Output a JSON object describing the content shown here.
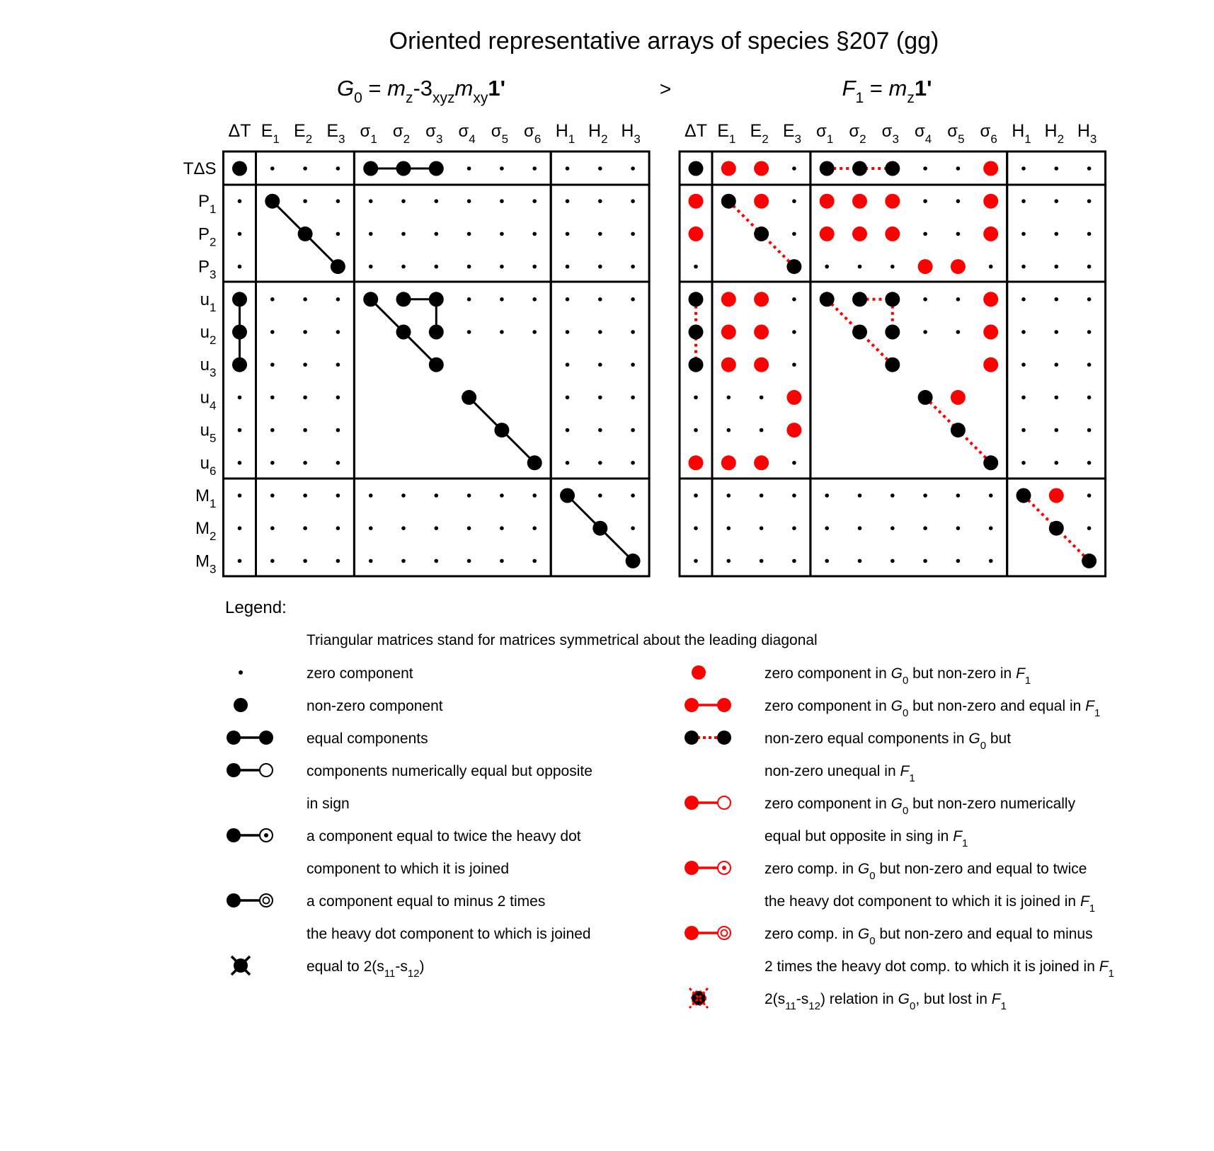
{
  "title": "Oriented representative arrays of species §207 (gg)",
  "comparator": ">",
  "left_group": {
    "main": "G",
    "sub": "0",
    "eq": " = ",
    "m1": "m",
    "m1sub": "z",
    "mid": "-3",
    "midsub": "xyz",
    "m2": "m",
    "m2sub": "xy",
    "bold": "1'"
  },
  "right_group": {
    "main": "F",
    "sub": "1",
    "eq": " = ",
    "m1": "m",
    "m1sub": "z",
    "bold": "1'"
  },
  "columns": [
    {
      "base": "ΔT",
      "sub": "",
      "greek": false
    },
    {
      "base": "E",
      "sub": "1",
      "greek": false
    },
    {
      "base": "E",
      "sub": "2",
      "greek": false
    },
    {
      "base": "E",
      "sub": "3",
      "greek": false
    },
    {
      "base": "σ",
      "sub": "1",
      "greek": true
    },
    {
      "base": "σ",
      "sub": "2",
      "greek": true
    },
    {
      "base": "σ",
      "sub": "3",
      "greek": true
    },
    {
      "base": "σ",
      "sub": "4",
      "greek": true
    },
    {
      "base": "σ",
      "sub": "5",
      "greek": true
    },
    {
      "base": "σ",
      "sub": "6",
      "greek": true
    },
    {
      "base": "H",
      "sub": "1",
      "greek": false
    },
    {
      "base": "H",
      "sub": "2",
      "greek": false
    },
    {
      "base": "H",
      "sub": "3",
      "greek": false
    }
  ],
  "rows": [
    {
      "base": "TΔS",
      "sub": ""
    },
    {
      "base": "P",
      "sub": "1"
    },
    {
      "base": "P",
      "sub": "2"
    },
    {
      "base": "P",
      "sub": "3"
    },
    {
      "base": "u",
      "sub": "1"
    },
    {
      "base": "u",
      "sub": "2"
    },
    {
      "base": "u",
      "sub": "3"
    },
    {
      "base": "u",
      "sub": "4"
    },
    {
      "base": "u",
      "sub": "5"
    },
    {
      "base": "u",
      "sub": "6"
    },
    {
      "base": "M",
      "sub": "1"
    },
    {
      "base": "M",
      "sub": "2"
    },
    {
      "base": "M",
      "sub": "3"
    }
  ],
  "col_blocks": [
    [
      0,
      0
    ],
    [
      1,
      3
    ],
    [
      4,
      9
    ],
    [
      10,
      12
    ]
  ],
  "row_blocks": [
    [
      0,
      0
    ],
    [
      1,
      3
    ],
    [
      4,
      9
    ],
    [
      10,
      12
    ]
  ],
  "left_matrix": {
    "cells": [
      {
        "row": 0,
        "col": 0,
        "state": "big"
      },
      {
        "row": 0,
        "col": 4,
        "state": "big"
      },
      {
        "row": 0,
        "col": 5,
        "state": "big"
      },
      {
        "row": 0,
        "col": 6,
        "state": "big"
      },
      {
        "row": 1,
        "col": 1,
        "state": "big"
      },
      {
        "row": 2,
        "col": 2,
        "state": "big"
      },
      {
        "row": 3,
        "col": 3,
        "state": "big"
      },
      {
        "row": 4,
        "col": 0,
        "state": "big"
      },
      {
        "row": 5,
        "col": 0,
        "state": "big"
      },
      {
        "row": 6,
        "col": 0,
        "state": "big"
      },
      {
        "row": 4,
        "col": 4,
        "state": "big"
      },
      {
        "row": 4,
        "col": 5,
        "state": "big"
      },
      {
        "row": 4,
        "col": 6,
        "state": "big"
      },
      {
        "row": 5,
        "col": 5,
        "state": "big"
      },
      {
        "row": 5,
        "col": 6,
        "state": "big"
      },
      {
        "row": 6,
        "col": 6,
        "state": "big"
      },
      {
        "row": 7,
        "col": 7,
        "state": "big"
      },
      {
        "row": 8,
        "col": 8,
        "state": "big"
      },
      {
        "row": 9,
        "col": 9,
        "state": "big"
      },
      {
        "row": 10,
        "col": 10,
        "state": "big"
      },
      {
        "row": 11,
        "col": 11,
        "state": "big"
      },
      {
        "row": 12,
        "col": 12,
        "state": "big"
      }
    ],
    "links": [
      {
        "from": [
          0,
          4
        ],
        "to": [
          0,
          6
        ],
        "style": "solid"
      },
      {
        "from": [
          1,
          1
        ],
        "to": [
          3,
          3
        ],
        "style": "solid"
      },
      {
        "from": [
          4,
          0
        ],
        "to": [
          6,
          0
        ],
        "style": "solid"
      },
      {
        "from": [
          4,
          4
        ],
        "to": [
          6,
          6
        ],
        "style": "solid"
      },
      {
        "from": [
          4,
          5
        ],
        "to": [
          4,
          6
        ],
        "style": "solid"
      },
      {
        "from": [
          4,
          6
        ],
        "to": [
          5,
          6
        ],
        "style": "solid"
      },
      {
        "from": [
          7,
          7
        ],
        "to": [
          9,
          9
        ],
        "style": "solid"
      },
      {
        "from": [
          10,
          10
        ],
        "to": [
          12,
          12
        ],
        "style": "solid"
      }
    ]
  },
  "right_matrix": {
    "cells": [
      {
        "row": 0,
        "col": 0,
        "state": "big"
      },
      {
        "row": 0,
        "col": 1,
        "state": "red"
      },
      {
        "row": 0,
        "col": 2,
        "state": "red"
      },
      {
        "row": 0,
        "col": 4,
        "state": "big"
      },
      {
        "row": 0,
        "col": 5,
        "state": "big"
      },
      {
        "row": 0,
        "col": 6,
        "state": "big"
      },
      {
        "row": 0,
        "col": 9,
        "state": "red"
      },
      {
        "row": 1,
        "col": 0,
        "state": "red"
      },
      {
        "row": 1,
        "col": 1,
        "state": "big"
      },
      {
        "row": 1,
        "col": 2,
        "state": "red"
      },
      {
        "row": 1,
        "col": 4,
        "state": "red"
      },
      {
        "row": 1,
        "col": 5,
        "state": "red"
      },
      {
        "row": 1,
        "col": 6,
        "state": "red"
      },
      {
        "row": 1,
        "col": 9,
        "state": "red"
      },
      {
        "row": 2,
        "col": 0,
        "state": "red"
      },
      {
        "row": 2,
        "col": 2,
        "state": "big"
      },
      {
        "row": 2,
        "col": 4,
        "state": "red"
      },
      {
        "row": 2,
        "col": 5,
        "state": "red"
      },
      {
        "row": 2,
        "col": 6,
        "state": "red"
      },
      {
        "row": 2,
        "col": 9,
        "state": "red"
      },
      {
        "row": 3,
        "col": 3,
        "state": "big"
      },
      {
        "row": 3,
        "col": 7,
        "state": "red"
      },
      {
        "row": 3,
        "col": 8,
        "state": "red"
      },
      {
        "row": 4,
        "col": 0,
        "state": "big"
      },
      {
        "row": 4,
        "col": 1,
        "state": "red"
      },
      {
        "row": 4,
        "col": 2,
        "state": "red"
      },
      {
        "row": 4,
        "col": 4,
        "state": "big"
      },
      {
        "row": 4,
        "col": 5,
        "state": "big"
      },
      {
        "row": 4,
        "col": 6,
        "state": "big"
      },
      {
        "row": 4,
        "col": 9,
        "state": "red"
      },
      {
        "row": 5,
        "col": 0,
        "state": "big"
      },
      {
        "row": 5,
        "col": 1,
        "state": "red"
      },
      {
        "row": 5,
        "col": 2,
        "state": "red"
      },
      {
        "row": 5,
        "col": 5,
        "state": "big"
      },
      {
        "row": 5,
        "col": 6,
        "state": "big"
      },
      {
        "row": 5,
        "col": 9,
        "state": "red"
      },
      {
        "row": 6,
        "col": 0,
        "state": "big"
      },
      {
        "row": 6,
        "col": 1,
        "state": "red"
      },
      {
        "row": 6,
        "col": 2,
        "state": "red"
      },
      {
        "row": 6,
        "col": 6,
        "state": "big"
      },
      {
        "row": 6,
        "col": 9,
        "state": "red"
      },
      {
        "row": 7,
        "col": 3,
        "state": "red"
      },
      {
        "row": 7,
        "col": 7,
        "state": "big"
      },
      {
        "row": 7,
        "col": 8,
        "state": "red"
      },
      {
        "row": 8,
        "col": 3,
        "state": "red"
      },
      {
        "row": 8,
        "col": 8,
        "state": "big"
      },
      {
        "row": 9,
        "col": 0,
        "state": "red"
      },
      {
        "row": 9,
        "col": 1,
        "state": "red"
      },
      {
        "row": 9,
        "col": 2,
        "state": "red"
      },
      {
        "row": 9,
        "col": 9,
        "state": "big"
      },
      {
        "row": 10,
        "col": 10,
        "state": "big"
      },
      {
        "row": 10,
        "col": 11,
        "state": "red"
      },
      {
        "row": 11,
        "col": 11,
        "state": "big"
      },
      {
        "row": 12,
        "col": 12,
        "state": "big"
      }
    ],
    "links": [
      {
        "from": [
          0,
          4
        ],
        "to": [
          0,
          6
        ],
        "style": "dotted"
      },
      {
        "from": [
          1,
          1
        ],
        "to": [
          3,
          3
        ],
        "style": "dotted"
      },
      {
        "from": [
          4,
          0
        ],
        "to": [
          6,
          0
        ],
        "style": "dotted"
      },
      {
        "from": [
          4,
          4
        ],
        "to": [
          6,
          6
        ],
        "style": "dotted"
      },
      {
        "from": [
          4,
          5
        ],
        "to": [
          4,
          6
        ],
        "style": "dotted"
      },
      {
        "from": [
          4,
          6
        ],
        "to": [
          5,
          6
        ],
        "style": "dotted"
      },
      {
        "from": [
          7,
          7
        ],
        "to": [
          9,
          9
        ],
        "style": "dotted"
      },
      {
        "from": [
          10,
          10
        ],
        "to": [
          12,
          12
        ],
        "style": "dotted"
      }
    ]
  },
  "legend": {
    "title": "Legend:",
    "note": "Triangular matrices stand for matrices symmetrical about the leading diagonal",
    "left": [
      {
        "symbol": "small-dot",
        "lines": [
          [
            {
              "t": "zero component"
            }
          ]
        ]
      },
      {
        "symbol": "big-dot",
        "lines": [
          [
            {
              "t": "non-zero component"
            }
          ]
        ]
      },
      {
        "symbol": "equal-pair",
        "lines": [
          [
            {
              "t": "equal components"
            }
          ]
        ]
      },
      {
        "symbol": "opposite-pair",
        "lines": [
          [
            {
              "t": "components numerically equal but opposite"
            }
          ],
          [
            {
              "t": "in sign"
            }
          ]
        ]
      },
      {
        "symbol": "twice-pair",
        "lines": [
          [
            {
              "t": "a component equal to twice the heavy dot"
            }
          ],
          [
            {
              "t": "component to which it is joined"
            }
          ]
        ]
      },
      {
        "symbol": "minus-two-pair",
        "lines": [
          [
            {
              "t": "a component equal to minus 2 times"
            }
          ],
          [
            {
              "t": "the heavy dot component to which is joined"
            }
          ]
        ]
      },
      {
        "symbol": "cross-dot",
        "lines": [
          [
            {
              "t": "equal to 2(s"
            },
            {
              "t": "11",
              "sub": true
            },
            {
              "t": "-s"
            },
            {
              "t": "12",
              "sub": true
            },
            {
              "t": ")"
            }
          ]
        ]
      }
    ],
    "right": [
      {
        "symbol": "red-dot",
        "lines": [
          [
            {
              "t": "zero component in "
            },
            {
              "t": "G",
              "i": true
            },
            {
              "t": "0",
              "sub": true
            },
            {
              "t": " but non-zero in "
            },
            {
              "t": "F",
              "i": true
            },
            {
              "t": "1",
              "sub": true
            }
          ]
        ]
      },
      {
        "symbol": "red-pair",
        "lines": [
          [
            {
              "t": "zero component in "
            },
            {
              "t": "G",
              "i": true
            },
            {
              "t": "0",
              "sub": true
            },
            {
              "t": " but non-zero and equal in "
            },
            {
              "t": "F",
              "i": true
            },
            {
              "t": "1",
              "sub": true
            }
          ]
        ]
      },
      {
        "symbol": "dotted-pair",
        "lines": [
          [
            {
              "t": "non-zero equal components in "
            },
            {
              "t": "G",
              "i": true
            },
            {
              "t": "0",
              "sub": true
            },
            {
              "t": " but"
            }
          ],
          [
            {
              "t": "non-zero unequal in "
            },
            {
              "t": "F",
              "i": true
            },
            {
              "t": "1",
              "sub": true
            }
          ]
        ]
      },
      {
        "symbol": "red-opposite-pair",
        "lines": [
          [
            {
              "t": "zero component in "
            },
            {
              "t": "G",
              "i": true
            },
            {
              "t": "0",
              "sub": true
            },
            {
              "t": " but non-zero numerically"
            }
          ],
          [
            {
              "t": "equal but opposite in sing in "
            },
            {
              "t": "F",
              "i": true
            },
            {
              "t": "1",
              "sub": true
            }
          ]
        ]
      },
      {
        "symbol": "red-twice-pair",
        "lines": [
          [
            {
              "t": "zero comp. in "
            },
            {
              "t": "G",
              "i": true
            },
            {
              "t": "0",
              "sub": true
            },
            {
              "t": " but non-zero and equal to twice"
            }
          ],
          [
            {
              "t": "the heavy dot component to which it is joined in "
            },
            {
              "t": "F",
              "i": true
            },
            {
              "t": "1",
              "sub": true
            }
          ]
        ]
      },
      {
        "symbol": "red-minus-two-pair",
        "lines": [
          [
            {
              "t": "zero comp. in "
            },
            {
              "t": "G",
              "i": true
            },
            {
              "t": "0",
              "sub": true
            },
            {
              "t": " but non-zero and equal to minus"
            }
          ],
          [
            {
              "t": "2 times the heavy dot comp. to which it is joined in "
            },
            {
              "t": "F",
              "i": true
            },
            {
              "t": "1",
              "sub": true
            }
          ]
        ]
      },
      {
        "symbol": "red-cross-dot",
        "lines": [
          [
            {
              "t": "2(s"
            },
            {
              "t": "11",
              "sub": true
            },
            {
              "t": "-s"
            },
            {
              "t": "12",
              "sub": true
            },
            {
              "t": ") relation in "
            },
            {
              "t": "G",
              "i": true
            },
            {
              "t": "0",
              "sub": true
            },
            {
              "t": ", but lost in "
            },
            {
              "t": "F",
              "i": true
            },
            {
              "t": "1",
              "sub": true
            }
          ]
        ]
      }
    ]
  },
  "colors": {
    "red": "#ff0000",
    "ink": "#000000",
    "background": "#ffffff"
  }
}
